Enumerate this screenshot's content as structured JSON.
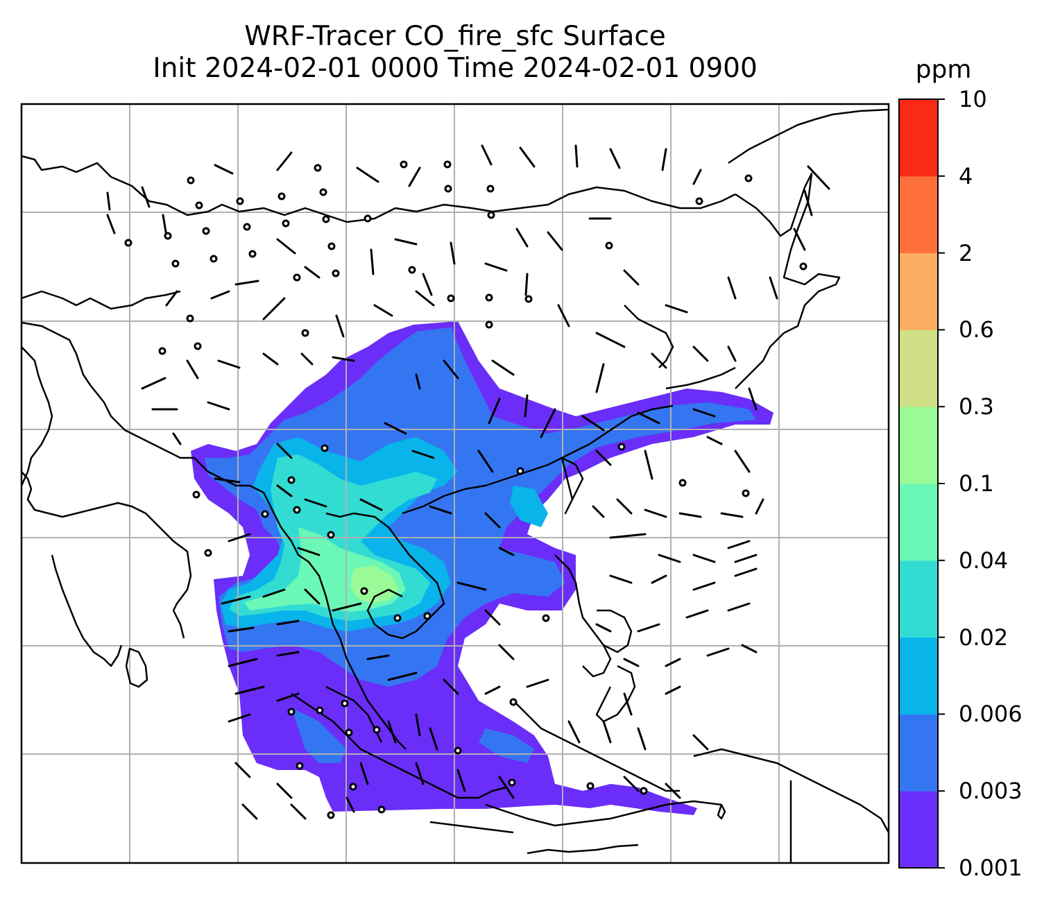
{
  "figure": {
    "title_line1": "WRF-Tracer CO_fire_sfc Surface",
    "title_line2": "Init 2024-02-01 0000 Time 2024-02-01 0900"
  },
  "colorbar": {
    "unit": "ppm",
    "levels": [
      "0.001",
      "0.003",
      "0.006",
      "0.02",
      "0.04",
      "0.1",
      "0.3",
      "0.6",
      "2",
      "4",
      "10"
    ],
    "colors": [
      "#6a2ef8",
      "#3476f2",
      "#08b4ea",
      "#33dcd3",
      "#6bf8b6",
      "#9afa97",
      "#cfe087",
      "#fcaf62",
      "#fe6f3c",
      "#fb2a17"
    ]
  },
  "map": {
    "field": "CO_fire_sfc",
    "gridlines": true,
    "features": [
      "coastlines",
      "country borders",
      "wind barbs",
      "calm-wind circles"
    ]
  }
}
